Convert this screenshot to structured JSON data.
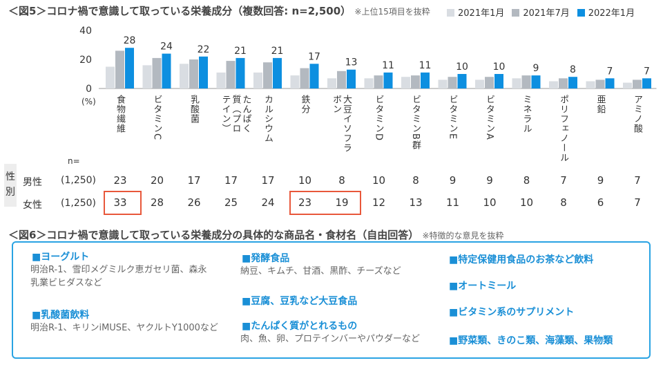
{
  "fig5": {
    "title": "＜図5＞コロナ禍で意識して取っている栄養成分（複数回答: n=2,500）",
    "note": "※上位15項目を抜粋",
    "unit_label": "(%)",
    "n_label": "n=",
    "sex_label": "性別",
    "male_label": "男性",
    "female_label": "女性",
    "male_n": "(1,250)",
    "female_n": "(1,250)",
    "male_values": [
      "23",
      "20",
      "17",
      "17",
      "17",
      "10",
      "8",
      "10",
      "8",
      "9",
      "9",
      "8",
      "7",
      "9",
      "7"
    ],
    "female_values": [
      "33",
      "28",
      "26",
      "25",
      "24",
      "23",
      "19",
      "12",
      "13",
      "11",
      "10",
      "10",
      "8",
      "6",
      "7"
    ]
  },
  "chart_data": {
    "type": "bar",
    "categories": [
      "食物繊維",
      "ビタミンC",
      "乳酸菌",
      "たんぱく質（プロテイン）",
      "カルシウム",
      "鉄分",
      "大豆イソフラボン",
      "ビタミンD",
      "ビタミンB群",
      "ビタミンE",
      "ビタミンA",
      "ミネラル",
      "ポリフェノール",
      "亜鉛",
      "アミノ酸"
    ],
    "series": [
      {
        "name": "2021年1月",
        "values": [
          15,
          16,
          17,
          11,
          11,
          9,
          7,
          7,
          8,
          6,
          6,
          7,
          5,
          5,
          4
        ],
        "color": "#d9dde2"
      },
      {
        "name": "2021年7月",
        "values": [
          26,
          21,
          20,
          19,
          18,
          14,
          12,
          9,
          9,
          8,
          8,
          9,
          7,
          6,
          6
        ],
        "color": "#b3b9c0"
      },
      {
        "name": "2022年1月",
        "values": [
          28,
          24,
          22,
          21,
          21,
          17,
          13,
          11,
          11,
          10,
          10,
          9,
          8,
          7,
          7
        ],
        "color": "#0d8fe0"
      }
    ],
    "data_labels": [
      "28",
      "24",
      "22",
      "21",
      "21",
      "17",
      "13",
      "11",
      "11",
      "10",
      "10",
      "9",
      "8",
      "7",
      "7"
    ],
    "ylim": [
      0,
      40
    ],
    "yticks": [
      0,
      20,
      40
    ],
    "legend": "top-right"
  },
  "fig6": {
    "title": "＜図6＞コロナ禍で意識して取っている栄養成分の具体的な商品名・食材名（自由回答）",
    "note": "※特徴的な意見を抜粋",
    "items": [
      {
        "head": "■ヨーグルト",
        "body": "明治R-1、雪印メグミルク恵ガセリ菌、森永乳業ビヒダスなど"
      },
      {
        "head": "■乳酸菌飲料",
        "body": "明治R-1、キリンiMUSE、ヤクルトY1000など"
      },
      {
        "head": "■発酵食品",
        "body": "納豆、キムチ、甘酒、黒酢、チーズなど"
      },
      {
        "head": "■豆腐、豆乳など大豆食品",
        "body": ""
      },
      {
        "head": "■たんぱく質がとれるもの",
        "body": "肉、魚、卵、プロテインバーやパウダーなど"
      },
      {
        "head": "■特定保健用食品のお茶など飲料",
        "body": ""
      },
      {
        "head": "■オートミール",
        "body": ""
      },
      {
        "head": "■ビタミン系のサプリメント",
        "body": ""
      },
      {
        "head": "■野菜類、きのこ類、海藻類、果物類",
        "body": ""
      }
    ]
  }
}
